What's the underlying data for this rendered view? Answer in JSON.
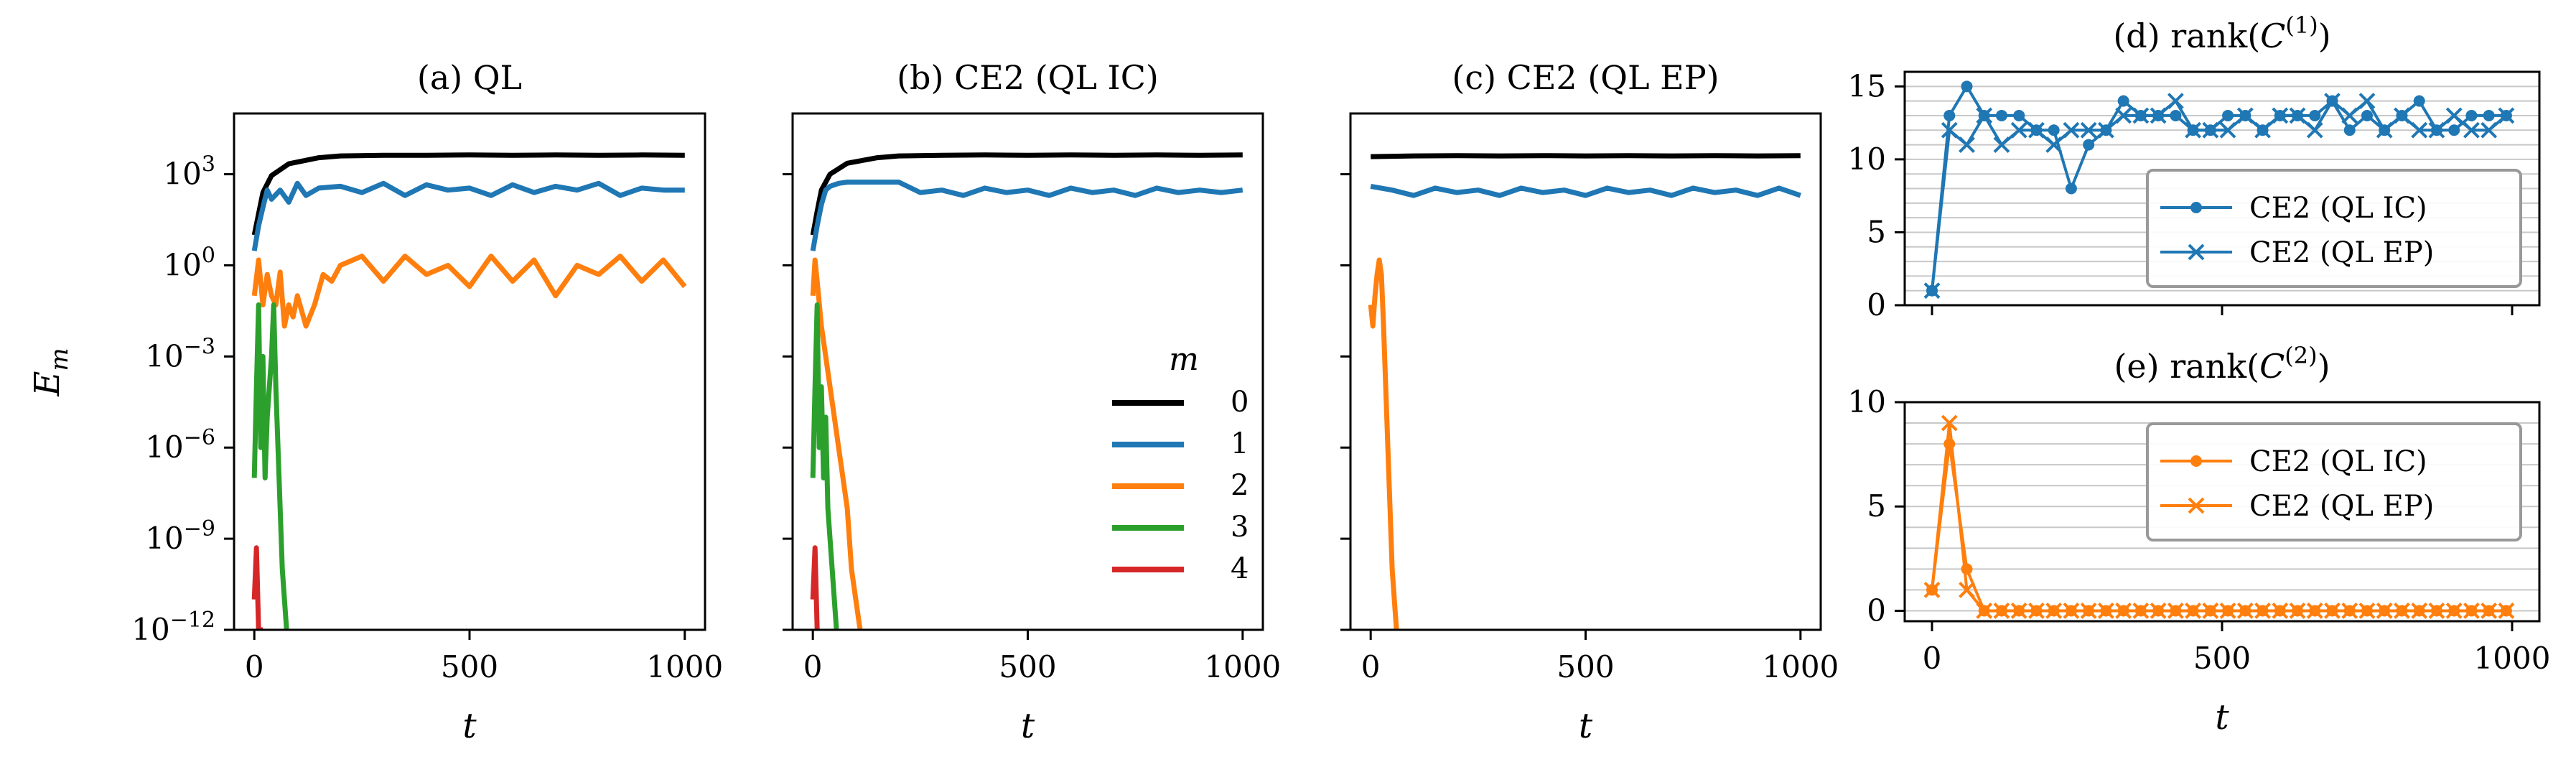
{
  "chart_data": [
    {
      "type": "line",
      "title": "(a) QL",
      "xlabel": "t",
      "ylabel": "E_m",
      "yscale": "log",
      "xlim": [
        0,
        1000
      ],
      "ylim": [
        1e-12,
        100000.0
      ],
      "xticks": [
        "0",
        "500",
        "1000"
      ],
      "yticks": [
        {
          "base": "10",
          "exp": "3"
        },
        {
          "base": "10",
          "exp": "0"
        },
        {
          "base": "10",
          "exp": "−3"
        },
        {
          "base": "10",
          "exp": "−6"
        },
        {
          "base": "10",
          "exp": "−9"
        },
        {
          "base": "10",
          "exp": "−12"
        }
      ],
      "series": [
        {
          "name": "0",
          "color": "#000000",
          "x": [
            0,
            10,
            20,
            40,
            80,
            150,
            200,
            300,
            400,
            500,
            600,
            700,
            800,
            900,
            1000
          ],
          "y": [
            10,
            50,
            250,
            900,
            2200,
            3500,
            4000,
            4200,
            4200,
            4300,
            4200,
            4300,
            4200,
            4300,
            4200
          ]
        },
        {
          "name": "1",
          "color": "#1f77b4",
          "x": [
            0,
            10,
            20,
            30,
            40,
            60,
            80,
            100,
            120,
            150,
            200,
            250,
            300,
            350,
            400,
            450,
            500,
            550,
            600,
            650,
            700,
            750,
            800,
            850,
            900,
            950,
            1000
          ],
          "y": [
            3,
            20,
            80,
            300,
            150,
            300,
            120,
            500,
            200,
            350,
            400,
            250,
            500,
            200,
            450,
            300,
            350,
            200,
            450,
            250,
            400,
            300,
            500,
            200,
            350,
            300,
            300
          ]
        },
        {
          "name": "2",
          "color": "#ff7f0e",
          "x": [
            0,
            10,
            20,
            30,
            40,
            50,
            60,
            70,
            80,
            90,
            100,
            120,
            140,
            160,
            180,
            200,
            250,
            300,
            350,
            400,
            450,
            500,
            550,
            600,
            650,
            700,
            750,
            800,
            850,
            900,
            950,
            1000
          ],
          "y": [
            0.1,
            1.5,
            0.05,
            0.5,
            0.1,
            0.05,
            0.6,
            0.01,
            0.05,
            0.02,
            0.1,
            0.01,
            0.05,
            0.5,
            0.3,
            1,
            2,
            0.3,
            2,
            0.5,
            1,
            0.2,
            2,
            0.3,
            1.5,
            0.1,
            1,
            0.5,
            2,
            0.3,
            1.5,
            0.2
          ]
        },
        {
          "name": "3",
          "color": "#2ca02c",
          "x": [
            0,
            5,
            10,
            15,
            20,
            25,
            30,
            35,
            40,
            45,
            50,
            55,
            60,
            65,
            70,
            75
          ],
          "y": [
            1e-07,
            0.0001,
            0.05,
            1e-06,
            0.001,
            1e-07,
            1e-05,
            0.0001,
            0.001,
            0.05,
            0.0001,
            1e-06,
            1e-08,
            1e-10,
            1e-11,
            1e-12
          ]
        },
        {
          "name": "4",
          "color": "#d62728",
          "x": [
            0,
            5,
            10,
            15,
            20
          ],
          "y": [
            1e-11,
            5e-10,
            1e-12,
            1e-12,
            1e-12
          ]
        }
      ]
    },
    {
      "type": "line",
      "title": "(b) CE2 (QL IC)",
      "xlabel": "t",
      "yscale": "log",
      "xlim": [
        0,
        1000
      ],
      "ylim": [
        1e-12,
        100000.0
      ],
      "xticks": [
        "0",
        "500",
        "1000"
      ],
      "legend": {
        "title": "m",
        "position": "lower-right",
        "entries": [
          "0",
          "1",
          "2",
          "3",
          "4"
        ]
      },
      "series": [
        {
          "name": "0",
          "color": "#000000",
          "x": [
            0,
            10,
            20,
            40,
            80,
            150,
            200,
            300,
            400,
            500,
            600,
            700,
            800,
            900,
            1000
          ],
          "y": [
            10,
            60,
            300,
            1000,
            2300,
            3500,
            4000,
            4200,
            4300,
            4200,
            4300,
            4200,
            4300,
            4200,
            4300
          ]
        },
        {
          "name": "1",
          "color": "#1f77b4",
          "x": [
            0,
            10,
            20,
            30,
            40,
            60,
            80,
            100,
            150,
            200,
            250,
            300,
            350,
            400,
            450,
            500,
            550,
            600,
            650,
            700,
            750,
            800,
            850,
            900,
            950,
            1000
          ],
          "y": [
            3,
            20,
            100,
            300,
            400,
            500,
            550,
            550,
            550,
            550,
            250,
            300,
            200,
            350,
            250,
            300,
            200,
            350,
            250,
            300,
            200,
            350,
            250,
            300,
            250,
            300
          ]
        },
        {
          "name": "2",
          "color": "#ff7f0e",
          "x": [
            0,
            5,
            10,
            20,
            30,
            40,
            50,
            60,
            70,
            80,
            90,
            100,
            110
          ],
          "y": [
            0.1,
            1.5,
            0.3,
            0.01,
            0.001,
            0.0001,
            1e-05,
            1e-06,
            1e-07,
            1e-08,
            1e-10,
            1e-11,
            1e-12
          ]
        },
        {
          "name": "3",
          "color": "#2ca02c",
          "x": [
            0,
            5,
            10,
            15,
            20,
            25,
            30,
            35,
            40,
            45,
            50,
            55
          ],
          "y": [
            1e-07,
            0.0001,
            0.05,
            1e-06,
            0.0001,
            1e-07,
            1e-05,
            1e-08,
            1e-09,
            1e-10,
            1e-11,
            1e-12
          ]
        },
        {
          "name": "4",
          "color": "#d62728",
          "x": [
            0,
            5,
            10,
            15
          ],
          "y": [
            1e-11,
            5e-10,
            1e-12,
            1e-12
          ]
        }
      ]
    },
    {
      "type": "line",
      "title": "(c) CE2 (QL EP)",
      "xlabel": "t",
      "yscale": "log",
      "xlim": [
        0,
        1000
      ],
      "ylim": [
        1e-12,
        100000.0
      ],
      "xticks": [
        "0",
        "500",
        "1000"
      ],
      "series": [
        {
          "name": "0",
          "color": "#000000",
          "x": [
            0,
            100,
            200,
            300,
            400,
            500,
            600,
            700,
            800,
            900,
            1000
          ],
          "y": [
            3800,
            4000,
            4100,
            4000,
            4100,
            4000,
            4100,
            4000,
            4100,
            4000,
            4100
          ]
        },
        {
          "name": "1",
          "color": "#1f77b4",
          "x": [
            0,
            50,
            100,
            150,
            200,
            250,
            300,
            350,
            400,
            450,
            500,
            550,
            600,
            650,
            700,
            750,
            800,
            850,
            900,
            950,
            1000
          ],
          "y": [
            400,
            300,
            200,
            350,
            250,
            300,
            200,
            350,
            250,
            300,
            200,
            350,
            250,
            300,
            200,
            350,
            250,
            300,
            200,
            350,
            200
          ]
        },
        {
          "name": "2",
          "color": "#ff7f0e",
          "x": [
            0,
            5,
            10,
            15,
            20,
            25,
            30,
            35,
            40,
            45,
            50,
            55,
            60
          ],
          "y": [
            0.05,
            0.01,
            0.1,
            0.5,
            1.5,
            0.5,
            0.01,
            0.0001,
            1e-06,
            1e-08,
            1e-10,
            1e-11,
            1e-12
          ]
        }
      ]
    },
    {
      "type": "line",
      "title": "(d) rank(C(1))",
      "title_base": "(d) rank(",
      "title_sym": "C",
      "title_sup": "(1)",
      "title_end": ")",
      "xlim": [
        0,
        1000
      ],
      "ylim": [
        0,
        16
      ],
      "yticks": [
        "0",
        "5",
        "10",
        "15"
      ],
      "grid": "horizontal minor lines",
      "legend": {
        "position": "lower-right",
        "entries": [
          "CE2 (QL IC)",
          "CE2 (QL EP)"
        ]
      },
      "series": [
        {
          "name": "CE2 (QL IC)",
          "color": "#1f77b4",
          "marker": "o",
          "x": [
            0,
            30,
            60,
            90,
            120,
            150,
            180,
            210,
            240,
            270,
            300,
            330,
            360,
            390,
            420,
            450,
            480,
            510,
            540,
            570,
            600,
            630,
            660,
            690,
            720,
            750,
            780,
            810,
            840,
            870,
            900,
            930,
            960,
            990
          ],
          "y": [
            1,
            13,
            15,
            13,
            13,
            13,
            12,
            12,
            8,
            11,
            12,
            14,
            13,
            13,
            13,
            12,
            12,
            13,
            13,
            12,
            13,
            13,
            13,
            14,
            12,
            13,
            12,
            13,
            14,
            12,
            12,
            13,
            13,
            13
          ]
        },
        {
          "name": "CE2 (QL EP)",
          "color": "#1f77b4",
          "marker": "x",
          "x": [
            0,
            30,
            60,
            90,
            120,
            150,
            180,
            210,
            240,
            270,
            300,
            330,
            360,
            390,
            420,
            450,
            480,
            510,
            540,
            570,
            600,
            630,
            660,
            690,
            720,
            750,
            780,
            810,
            840,
            870,
            900,
            930,
            960,
            990
          ],
          "y": [
            1,
            12,
            11,
            13,
            11,
            12,
            12,
            11,
            12,
            12,
            12,
            13,
            13,
            13,
            14,
            12,
            12,
            12,
            13,
            12,
            13,
            13,
            12,
            14,
            13,
            14,
            12,
            13,
            12,
            12,
            13,
            12,
            12,
            13
          ]
        }
      ]
    },
    {
      "type": "line",
      "title": "(e) rank(C(2))",
      "title_base": "(e) rank(",
      "title_sym": "C",
      "title_sup": "(2)",
      "title_end": ")",
      "xlabel": "t",
      "xlim": [
        0,
        1000
      ],
      "ylim": [
        -0.5,
        10
      ],
      "xticks": [
        "0",
        "500",
        "1000"
      ],
      "yticks": [
        "0",
        "5",
        "10"
      ],
      "grid": "horizontal minor lines",
      "legend": {
        "position": "upper-right",
        "entries": [
          "CE2 (QL IC)",
          "CE2 (QL EP)"
        ]
      },
      "series": [
        {
          "name": "CE2 (QL IC)",
          "color": "#ff7f0e",
          "marker": "o",
          "x": [
            0,
            30,
            60,
            90,
            120,
            150,
            180,
            210,
            240,
            270,
            300,
            330,
            360,
            390,
            420,
            450,
            480,
            510,
            540,
            570,
            600,
            630,
            660,
            690,
            720,
            750,
            780,
            810,
            840,
            870,
            900,
            930,
            960,
            990
          ],
          "y": [
            1,
            8,
            2,
            0,
            0,
            0,
            0,
            0,
            0,
            0,
            0,
            0,
            0,
            0,
            0,
            0,
            0,
            0,
            0,
            0,
            0,
            0,
            0,
            0,
            0,
            0,
            0,
            0,
            0,
            0,
            0,
            0,
            0,
            0
          ]
        },
        {
          "name": "CE2 (QL EP)",
          "color": "#ff7f0e",
          "marker": "x",
          "x": [
            0,
            30,
            60,
            90,
            120,
            150,
            180,
            210,
            240,
            270,
            300,
            330,
            360,
            390,
            420,
            450,
            480,
            510,
            540,
            570,
            600,
            630,
            660,
            690,
            720,
            750,
            780,
            810,
            840,
            870,
            900,
            930,
            960,
            990
          ],
          "y": [
            1,
            9,
            1,
            0,
            0,
            0,
            0,
            0,
            0,
            0,
            0,
            0,
            0,
            0,
            0,
            0,
            0,
            0,
            0,
            0,
            0,
            0,
            0,
            0,
            0,
            0,
            0,
            0,
            0,
            0,
            0,
            0,
            0,
            0
          ]
        }
      ]
    }
  ]
}
